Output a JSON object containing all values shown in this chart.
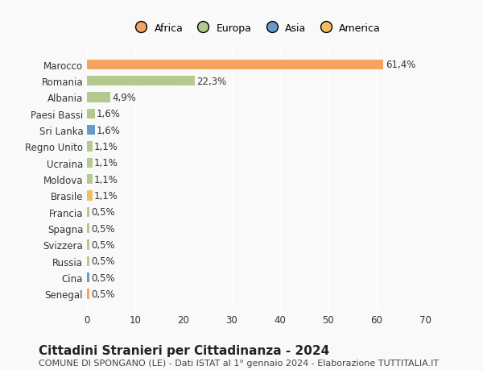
{
  "countries": [
    "Marocco",
    "Romania",
    "Albania",
    "Paesi Bassi",
    "Sri Lanka",
    "Regno Unito",
    "Ucraina",
    "Moldova",
    "Brasile",
    "Francia",
    "Spagna",
    "Svizzera",
    "Russia",
    "Cina",
    "Senegal"
  ],
  "values": [
    61.4,
    22.3,
    4.9,
    1.6,
    1.6,
    1.1,
    1.1,
    1.1,
    1.1,
    0.5,
    0.5,
    0.5,
    0.5,
    0.5,
    0.5
  ],
  "labels": [
    "61,4%",
    "22,3%",
    "4,9%",
    "1,6%",
    "1,6%",
    "1,1%",
    "1,1%",
    "1,1%",
    "1,1%",
    "0,5%",
    "0,5%",
    "0,5%",
    "0,5%",
    "0,5%",
    "0,5%"
  ],
  "continents": [
    "Africa",
    "Europa",
    "Europa",
    "Europa",
    "Asia",
    "Europa",
    "Europa",
    "Europa",
    "America",
    "Europa",
    "Europa",
    "Europa",
    "Europa",
    "Asia",
    "Africa"
  ],
  "continent_colors": {
    "Africa": "#F4A460",
    "Europa": "#B5C98E",
    "Asia": "#6699CC",
    "America": "#F0C060"
  },
  "legend_order": [
    "Africa",
    "Europa",
    "Asia",
    "America"
  ],
  "xlim": [
    0,
    70
  ],
  "xticks": [
    0,
    10,
    20,
    30,
    40,
    50,
    60,
    70
  ],
  "title": "Cittadini Stranieri per Cittadinanza - 2024",
  "subtitle": "COMUNE DI SPONGANO (LE) - Dati ISTAT al 1° gennaio 2024 - Elaborazione TUTTITALIA.IT",
  "background_color": "#f9f9f9",
  "bar_height": 0.6,
  "grid_color": "#ffffff",
  "label_fontsize": 8.5,
  "tick_fontsize": 8.5,
  "title_fontsize": 11,
  "subtitle_fontsize": 8
}
